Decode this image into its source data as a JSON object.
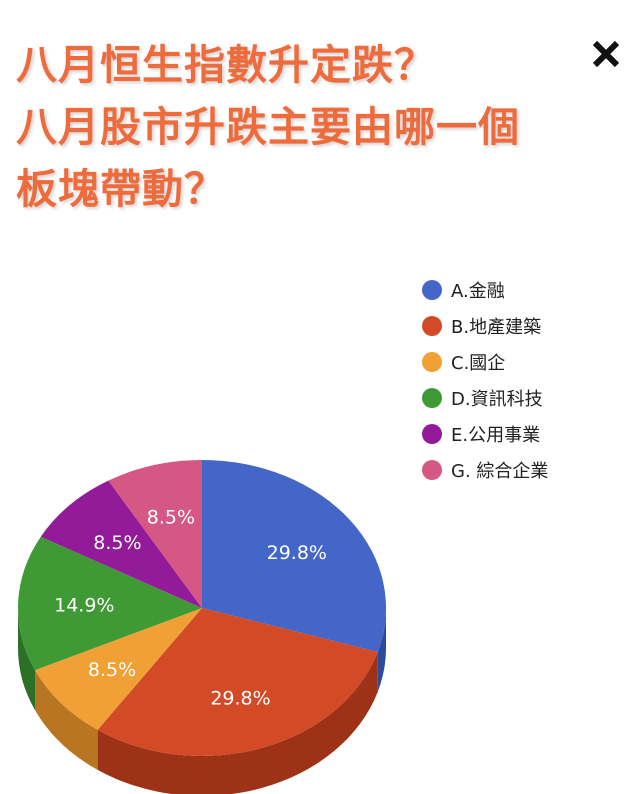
{
  "header": {
    "title_lines": [
      "八月恒生指數升定跌？",
      "八月股市升跌主要由哪一個",
      "板塊帶動？"
    ],
    "close_icon": "close-icon"
  },
  "chart_data": {
    "type": "pie",
    "title": "八月恒生指數升定跌？ 八月股市升跌主要由哪一個 板塊帶動？",
    "legend_position": "right",
    "style": "3d",
    "slices": [
      {
        "label": "A.金融",
        "value": 29.8,
        "value_label": "29.8%",
        "color": "#4466c9",
        "side_color": "#2d4a9c"
      },
      {
        "label": "B.地產建築",
        "value": 29.8,
        "value_label": "29.8%",
        "color": "#d24a26",
        "side_color": "#9e3217"
      },
      {
        "label": "C.國企",
        "value": 8.5,
        "value_label": "8.5%",
        "color": "#f0a034",
        "side_color": "#b87622"
      },
      {
        "label": "D.資訊科技",
        "value": 14.9,
        "value_label": "14.9%",
        "color": "#3f9a36",
        "side_color": "#2c7026"
      },
      {
        "label": "E.公用事業",
        "value": 8.5,
        "value_label": "8.5%",
        "color": "#931a99",
        "side_color": "#6b1270"
      },
      {
        "label": "G. 綜合企業",
        "value": 8.5,
        "value_label": "8.5%",
        "color": "#d45784",
        "side_color": "#a13d61"
      }
    ]
  }
}
